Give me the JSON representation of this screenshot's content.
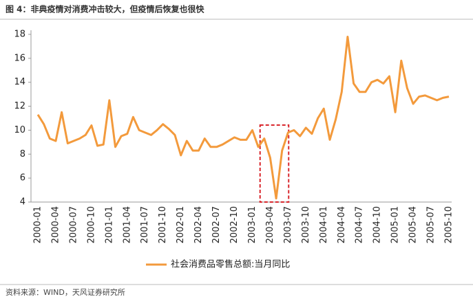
{
  "title": "图 4：非典疫情对消费冲击较大，但疫情后恢复也很快",
  "source": "资料来源：WIND，天风证券研究所",
  "chart_data": {
    "type": "line",
    "categories": [
      "2000-01",
      null,
      null,
      "2000-04",
      null,
      null,
      "2000-07",
      null,
      null,
      "2000-10",
      null,
      null,
      "2001-01",
      null,
      null,
      "2001-04",
      null,
      null,
      "2001-07",
      null,
      null,
      "2001-10",
      null,
      null,
      "2002-01",
      null,
      null,
      "2002-04",
      null,
      null,
      "2002-07",
      null,
      null,
      "2002-10",
      null,
      null,
      "2003-01",
      null,
      null,
      "2003-04",
      null,
      null,
      "2003-07",
      null,
      null,
      "2003-10",
      null,
      null,
      "2004-01",
      null,
      null,
      "2004-04",
      null,
      null,
      "2004-07",
      null,
      null,
      "2004-10",
      null,
      null,
      "2005-01",
      null,
      null,
      "2005-04",
      null,
      null,
      "2005-07",
      null,
      null,
      "2005-10"
    ],
    "series": [
      {
        "name": "社会消费品零售总额:当月同比",
        "color": "#f39a3c",
        "values": [
          11.3,
          10.5,
          9.3,
          9.1,
          11.5,
          8.9,
          9.1,
          9.3,
          9.6,
          10.4,
          8.7,
          8.8,
          12.5,
          8.6,
          9.5,
          9.7,
          11.1,
          10.0,
          9.8,
          9.6,
          10.0,
          10.5,
          10.1,
          9.6,
          7.9,
          9.1,
          8.3,
          8.3,
          9.3,
          8.6,
          8.6,
          8.8,
          9.1,
          9.4,
          9.2,
          9.2,
          10.0,
          8.6,
          9.3,
          7.7,
          4.3,
          8.3,
          9.8,
          10.0,
          9.5,
          10.2,
          9.7,
          11.0,
          11.8,
          9.2,
          10.9,
          13.2,
          17.8,
          13.9,
          13.2,
          13.2,
          14.0,
          14.2,
          13.9,
          14.5,
          11.5,
          15.8,
          13.5,
          12.2,
          12.8,
          12.9,
          12.7,
          12.5,
          12.7,
          12.8
        ]
      }
    ],
    "ylim": [
      4,
      18
    ],
    "yticks": [
      4,
      6,
      8,
      10,
      12,
      14,
      16,
      18
    ],
    "grid": false
  }
}
